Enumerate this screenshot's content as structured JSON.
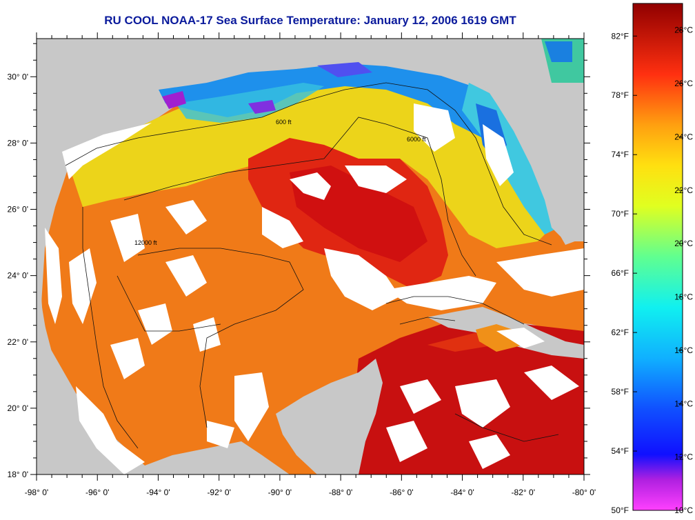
{
  "title": "RU COOL  NOAA-17  Sea Surface Temperature:  January 12, 2006 1619 GMT",
  "x_tick_labels": [
    "-98° 0'",
    "-96° 0'",
    "-94° 0'",
    "-92° 0'",
    "-90° 0'",
    "-88° 0'",
    "-86° 0'",
    "-84° 0'",
    "-82° 0'",
    "-80° 0'"
  ],
  "y_tick_labels": [
    "30° 0'",
    "28° 0'",
    "26° 0'",
    "24° 0'",
    "22° 0'",
    "20° 0'",
    "18° 0'"
  ],
  "colorbar": {
    "fahrenheit_labels": [
      "82°F",
      "78°F",
      "74°F",
      "70°F",
      "66°F",
      "62°F",
      "58°F",
      "54°F",
      "50°F"
    ],
    "celsius_labels": [
      "28°C",
      "26°C",
      "24°C",
      "22°C",
      "20°C",
      "18°C",
      "16°C",
      "14°C",
      "12°C",
      "10°C"
    ],
    "range_c": [
      10,
      29
    ]
  },
  "contour_labels": [
    "600 ft",
    "6000 ft",
    "12000 ft"
  ],
  "colors": {
    "land": "#c8c8c8",
    "cloud": "#ffffff",
    "title": "#0a1a9c",
    "warm": "#d81010",
    "mid": "#f07a18",
    "cool_yellow": "#e8e21c",
    "cold": "#1a86e8"
  }
}
